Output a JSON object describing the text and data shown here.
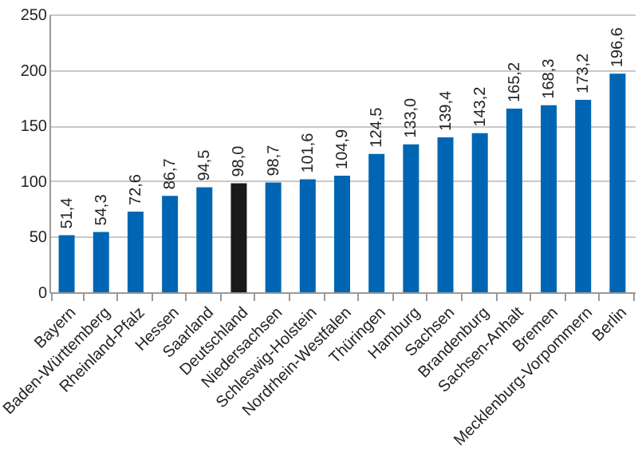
{
  "chart_data": {
    "type": "bar",
    "categories": [
      "Bayern",
      "Baden-Württemberg",
      "Rheinland-Pfalz",
      "Hessen",
      "Saarland",
      "Deutschland",
      "Niedersachsen",
      "Schleswig-Holstein",
      "Nordrhein-Westfalen",
      "Thüringen",
      "Hamburg",
      "Sachsen",
      "Brandenburg",
      "Sachsen-Anhalt",
      "Bremen",
      "Mecklenburg-Vorpommern",
      "Berlin"
    ],
    "values": [
      51.4,
      54.3,
      72.6,
      86.7,
      94.5,
      98.0,
      98.7,
      101.6,
      104.9,
      124.5,
      133.0,
      139.4,
      143.2,
      165.2,
      168.3,
      173.2,
      196.6
    ],
    "value_labels": [
      "51,4",
      "54,3",
      "72,6",
      "86,7",
      "94,5",
      "98,0",
      "98,7",
      "101,6",
      "104,9",
      "124,5",
      "133,0",
      "139,4",
      "143,2",
      "165,2",
      "168,3",
      "173,2",
      "196,6"
    ],
    "colors": [
      "#0066b3",
      "#0066b3",
      "#0066b3",
      "#0066b3",
      "#0066b3",
      "#1a1a1a",
      "#0066b3",
      "#0066b3",
      "#0066b3",
      "#0066b3",
      "#0066b3",
      "#0066b3",
      "#0066b3",
      "#0066b3",
      "#0066b3",
      "#0066b3",
      "#0066b3"
    ],
    "ylim": [
      0,
      250
    ],
    "yticks": [
      0,
      50,
      100,
      150,
      200,
      250
    ],
    "grid": "y"
  }
}
